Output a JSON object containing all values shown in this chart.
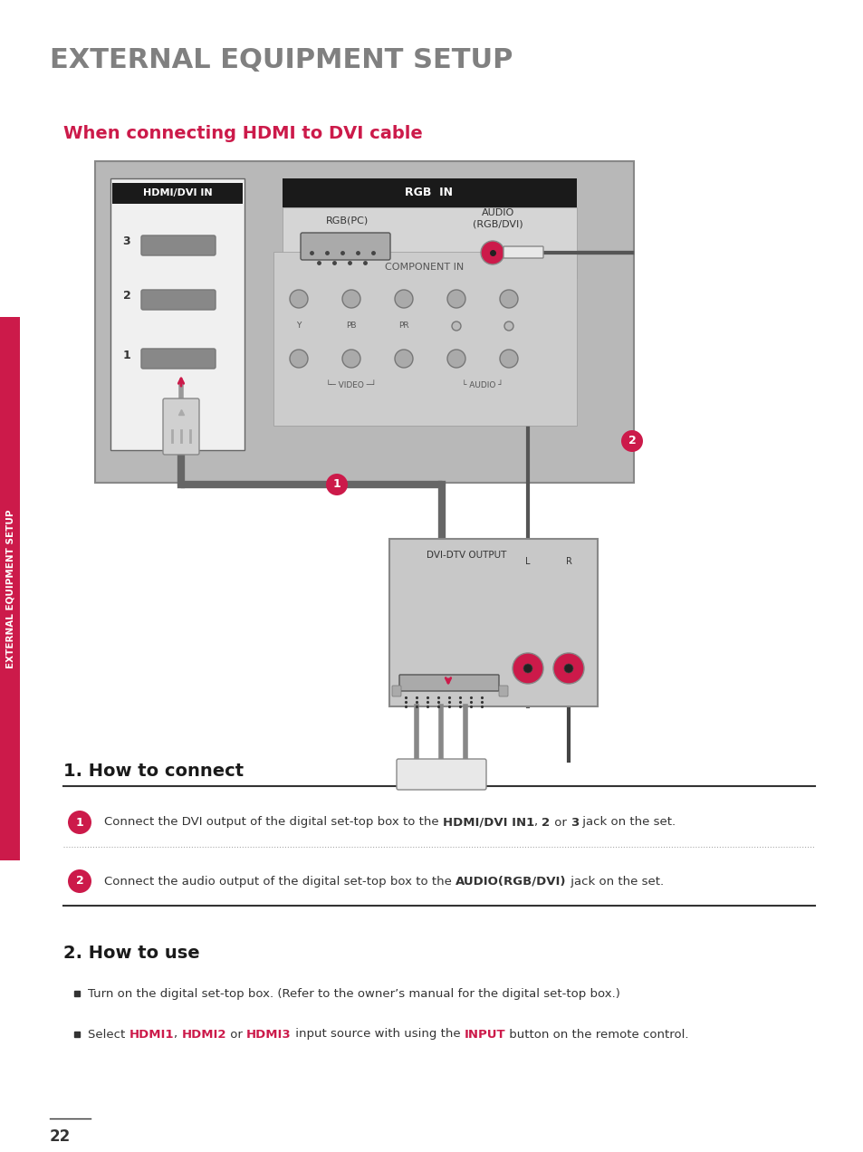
{
  "bg_color": "#ffffff",
  "title_main": "EXTERNAL EQUIPMENT SETUP",
  "title_main_color": "#808080",
  "title_main_fontsize": 22,
  "section_title": "When connecting HDMI to DVI cable",
  "section_title_color": "#cc1a4a",
  "section_title_fontsize": 14,
  "sidebar_text": "EXTERNAL EQUIPMENT SETUP",
  "sidebar_color": "#cc1a4a",
  "how_to_connect_title": "1. How to connect",
  "how_to_use_title": "2. How to use",
  "use_bullet1": "Turn on the digital set-top box. (Refer to the owner’s manual for the digital set-top box.)",
  "page_number": "22",
  "circle_color": "#cc1a4a",
  "circle_text_color": "#ffffff"
}
